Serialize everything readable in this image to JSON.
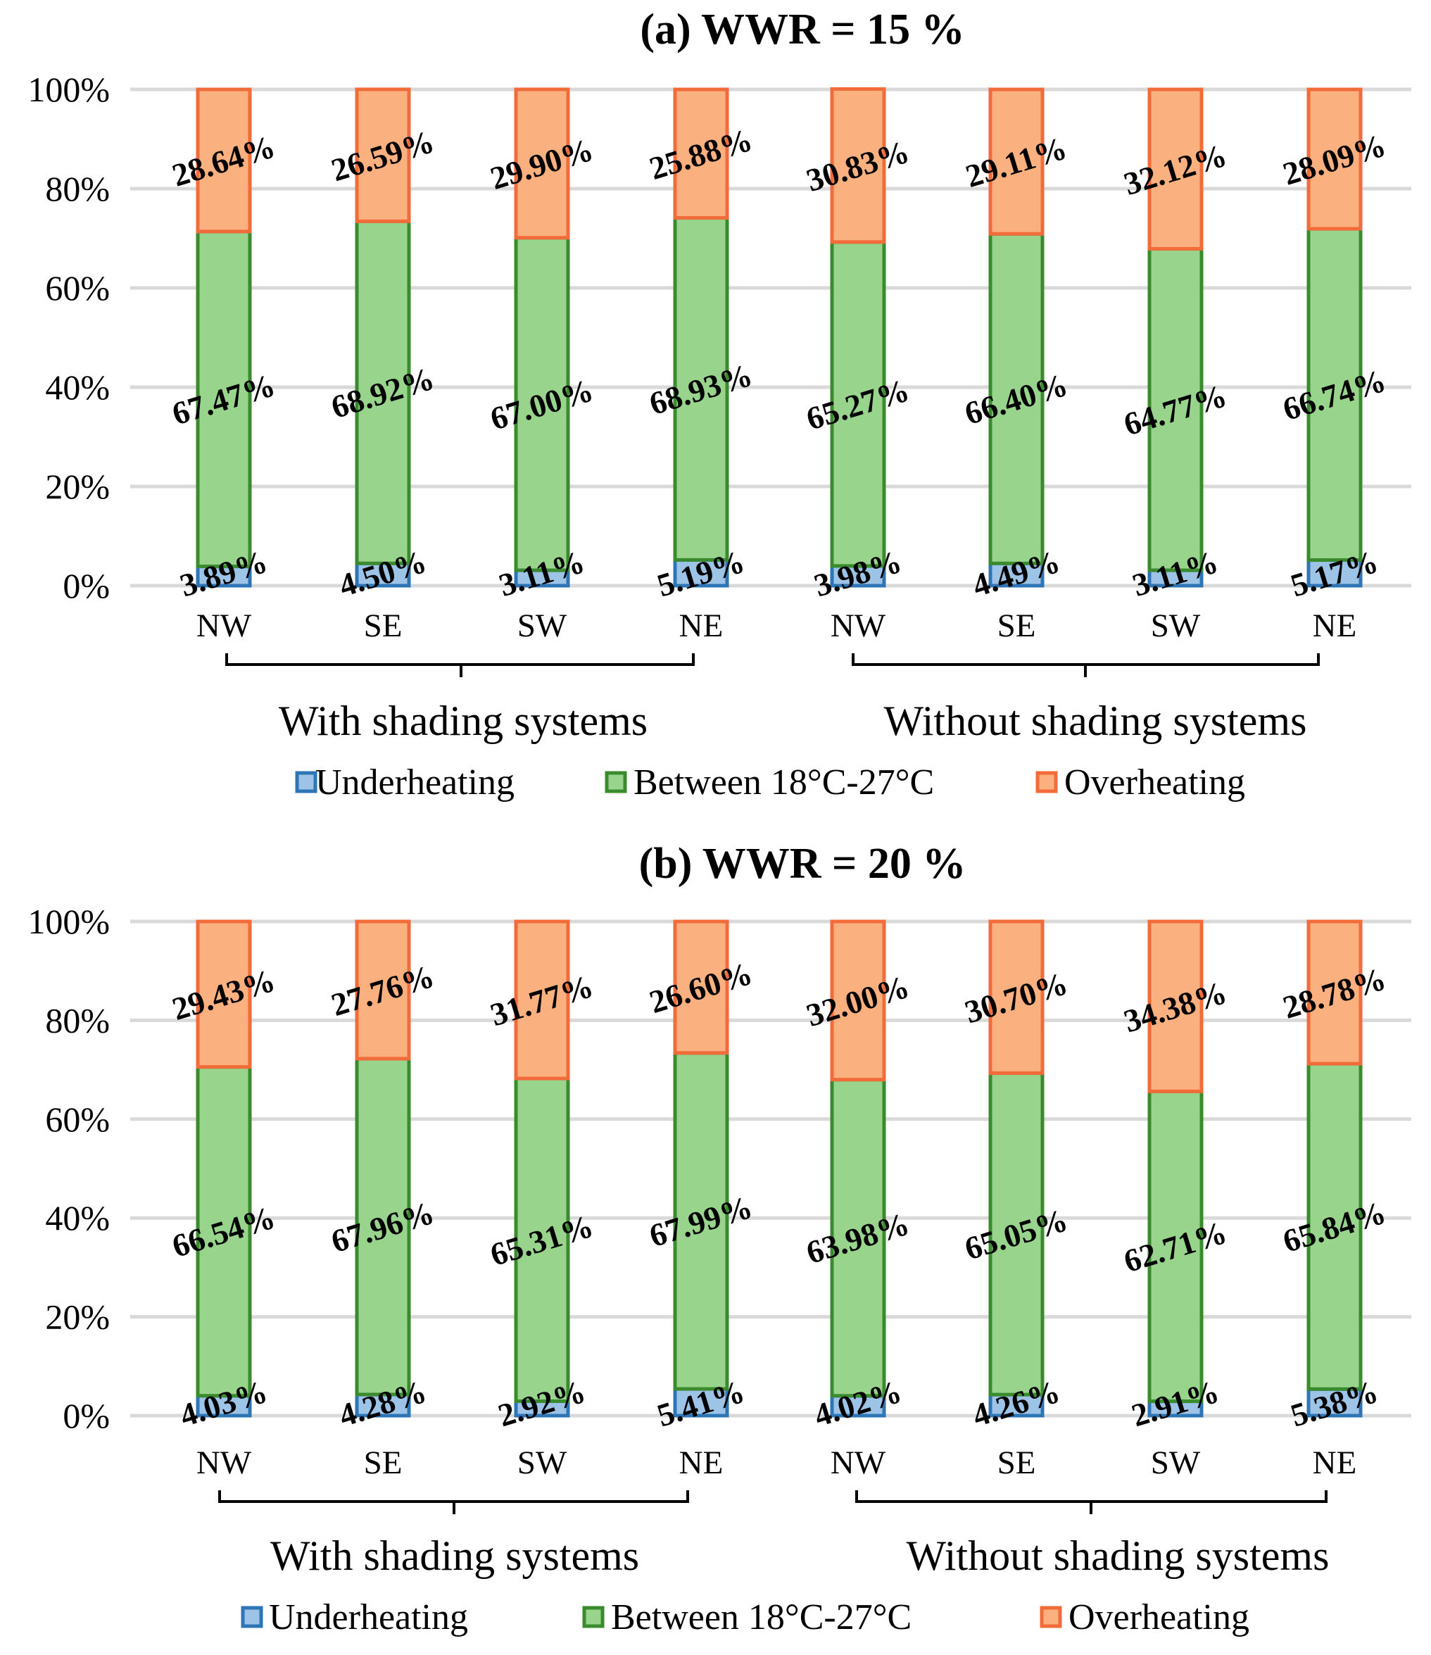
{
  "chart_data": [
    {
      "type": "bar",
      "stacked": true,
      "title": "(a) WWR = 15 %",
      "categories": [
        "NW",
        "SE",
        "SW",
        "NE",
        "NW",
        "SE",
        "SW",
        "NE"
      ],
      "groups": [
        {
          "label": "With shading systems",
          "categories": [
            0,
            1,
            2,
            3
          ]
        },
        {
          "label": "Without shading systems",
          "categories": [
            4,
            5,
            6,
            7
          ]
        }
      ],
      "ylim": [
        0,
        100
      ],
      "yticks": [
        "0%",
        "20%",
        "40%",
        "60%",
        "80%",
        "100%"
      ],
      "grid": true,
      "legend_position": "bottom",
      "series": [
        {
          "name": "Underheating",
          "color": "#9dc3e6",
          "edge_color": "#2e75b6",
          "values": [
            3.89,
            4.5,
            3.11,
            5.19,
            3.98,
            4.49,
            3.11,
            5.17
          ],
          "labels": [
            "3.89%",
            "4.50%",
            "3.11%",
            "5.19%",
            "3.98%",
            "4.49%",
            "3.11%",
            "5.17%"
          ]
        },
        {
          "name": "Between 18°C-27°C",
          "color": "#98d48c",
          "edge_color": "#3a8a2e",
          "values": [
            67.47,
            68.92,
            67.0,
            68.93,
            65.27,
            66.4,
            64.77,
            66.74
          ],
          "labels": [
            "67.47%",
            "68.92%",
            "67.00%",
            "68.93%",
            "65.27%",
            "66.40%",
            "64.77%",
            "66.74%"
          ]
        },
        {
          "name": "Overheating",
          "color": "#fbb07f",
          "edge_color": "#f26b3a",
          "values": [
            28.64,
            26.59,
            29.9,
            25.88,
            30.83,
            29.11,
            32.12,
            28.09
          ],
          "labels": [
            "28.64%",
            "26.59%",
            "29.90%",
            "25.88%",
            "30.83%",
            "29.11%",
            "32.12%",
            "28.09%"
          ]
        }
      ]
    },
    {
      "type": "bar",
      "stacked": true,
      "title": "(b) WWR = 20 %",
      "categories": [
        "NW",
        "SE",
        "SW",
        "NE",
        "NW",
        "SE",
        "SW",
        "NE"
      ],
      "groups": [
        {
          "label": "With shading systems",
          "categories": [
            0,
            1,
            2,
            3
          ]
        },
        {
          "label": "Without shading systems",
          "categories": [
            4,
            5,
            6,
            7
          ]
        }
      ],
      "ylim": [
        0,
        100
      ],
      "yticks": [
        "0%",
        "20%",
        "40%",
        "60%",
        "80%",
        "100%"
      ],
      "grid": true,
      "legend_position": "bottom",
      "series": [
        {
          "name": "Underheating",
          "color": "#9dc3e6",
          "edge_color": "#2e75b6",
          "values": [
            4.03,
            4.28,
            2.92,
            5.41,
            4.02,
            4.26,
            2.91,
            5.38
          ],
          "labels": [
            "4.03%",
            "4.28%",
            "2.92%",
            "5.41%",
            "4.02%",
            "4.26%",
            "2.91%",
            "5.38%"
          ]
        },
        {
          "name": "Between 18°C-27°C",
          "color": "#98d48c",
          "edge_color": "#3a8a2e",
          "values": [
            66.54,
            67.96,
            65.31,
            67.99,
            63.98,
            65.05,
            62.71,
            65.84
          ],
          "labels": [
            "66.54%",
            "67.96%",
            "65.31%",
            "67.99%",
            "63.98%",
            "65.05%",
            "62.71%",
            "65.84%"
          ]
        },
        {
          "name": "Overheating",
          "color": "#fbb07f",
          "edge_color": "#f26b3a",
          "values": [
            29.43,
            27.76,
            31.77,
            26.6,
            32.0,
            30.7,
            34.38,
            28.78
          ],
          "labels": [
            "29.43%",
            "27.76%",
            "31.77%",
            "26.60%",
            "32.00%",
            "30.70%",
            "34.38%",
            "28.78%"
          ]
        }
      ]
    }
  ]
}
